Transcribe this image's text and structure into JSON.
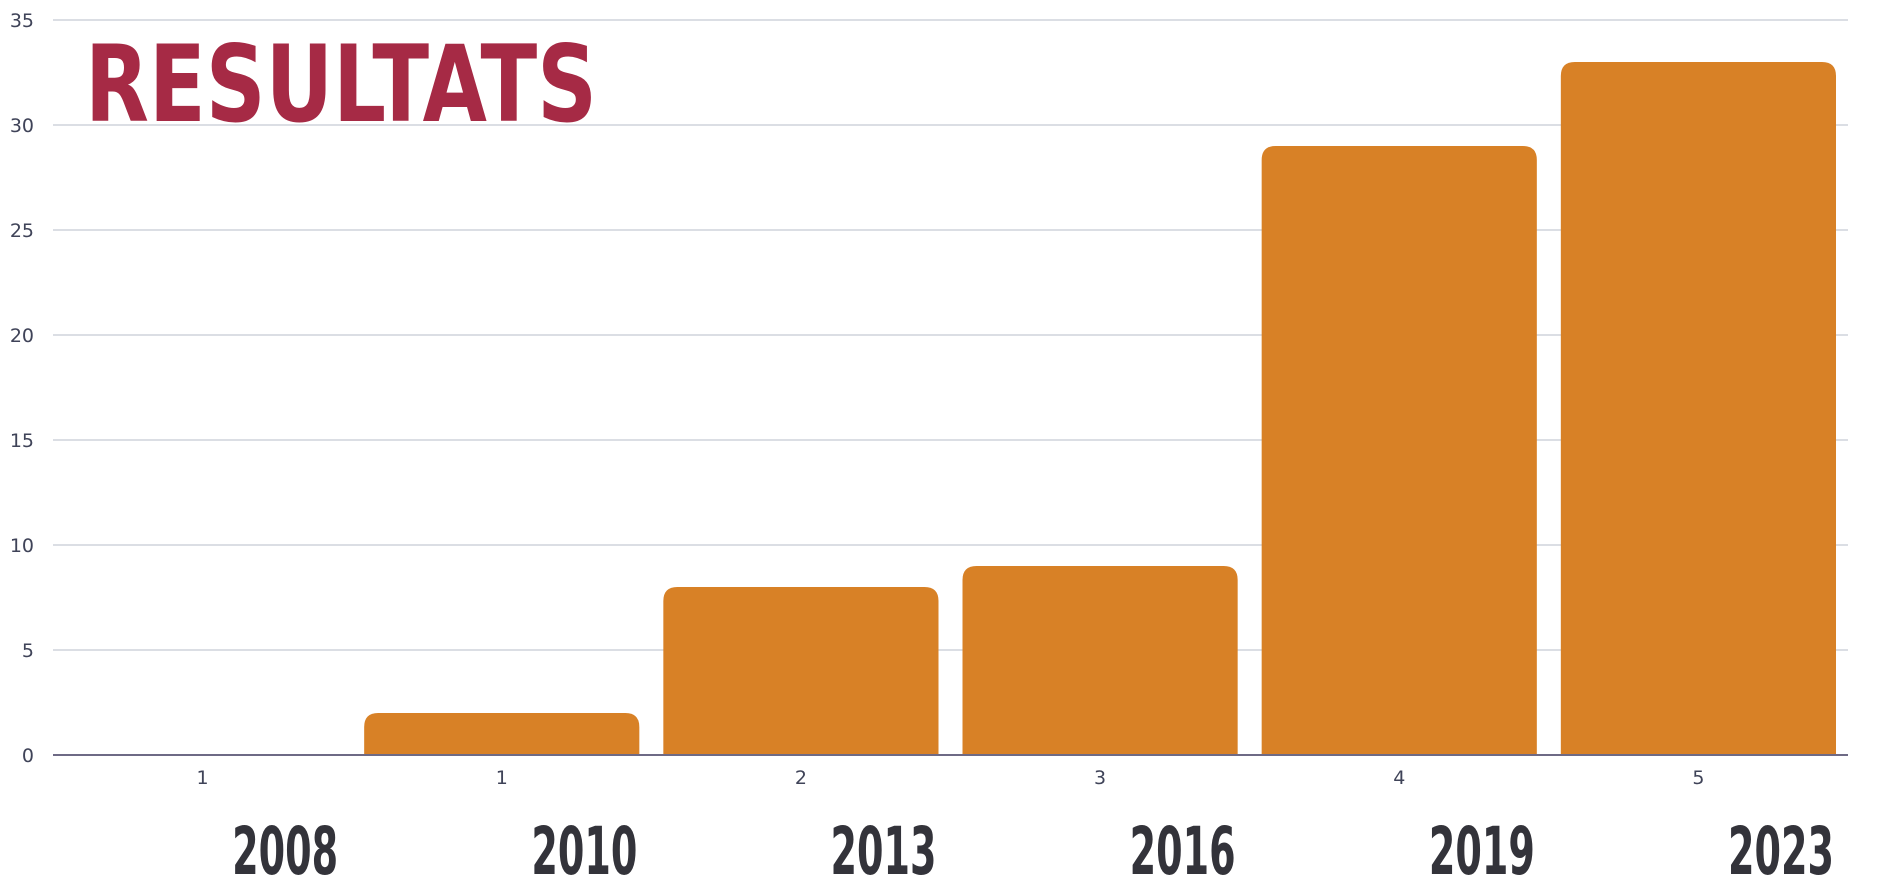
{
  "chart_data": {
    "type": "bar",
    "title": "RESULTATS",
    "categories": [
      "1",
      "1",
      "2",
      "3",
      "4",
      "5"
    ],
    "values": [
      0,
      2,
      8,
      9,
      29,
      33
    ],
    "year_labels": [
      "2008",
      "2010",
      "2013",
      "2016",
      "2019",
      "2023"
    ],
    "y_ticks": [
      "0",
      "5",
      "10",
      "15",
      "20",
      "25",
      "30",
      "35"
    ],
    "ylim": [
      0,
      35
    ],
    "grid": true,
    "colors": {
      "bar": "#d88126",
      "title": "#a62a45",
      "grid": "#cfd3db",
      "axis_text": "#3f4358",
      "year_text": "#33333a"
    }
  }
}
